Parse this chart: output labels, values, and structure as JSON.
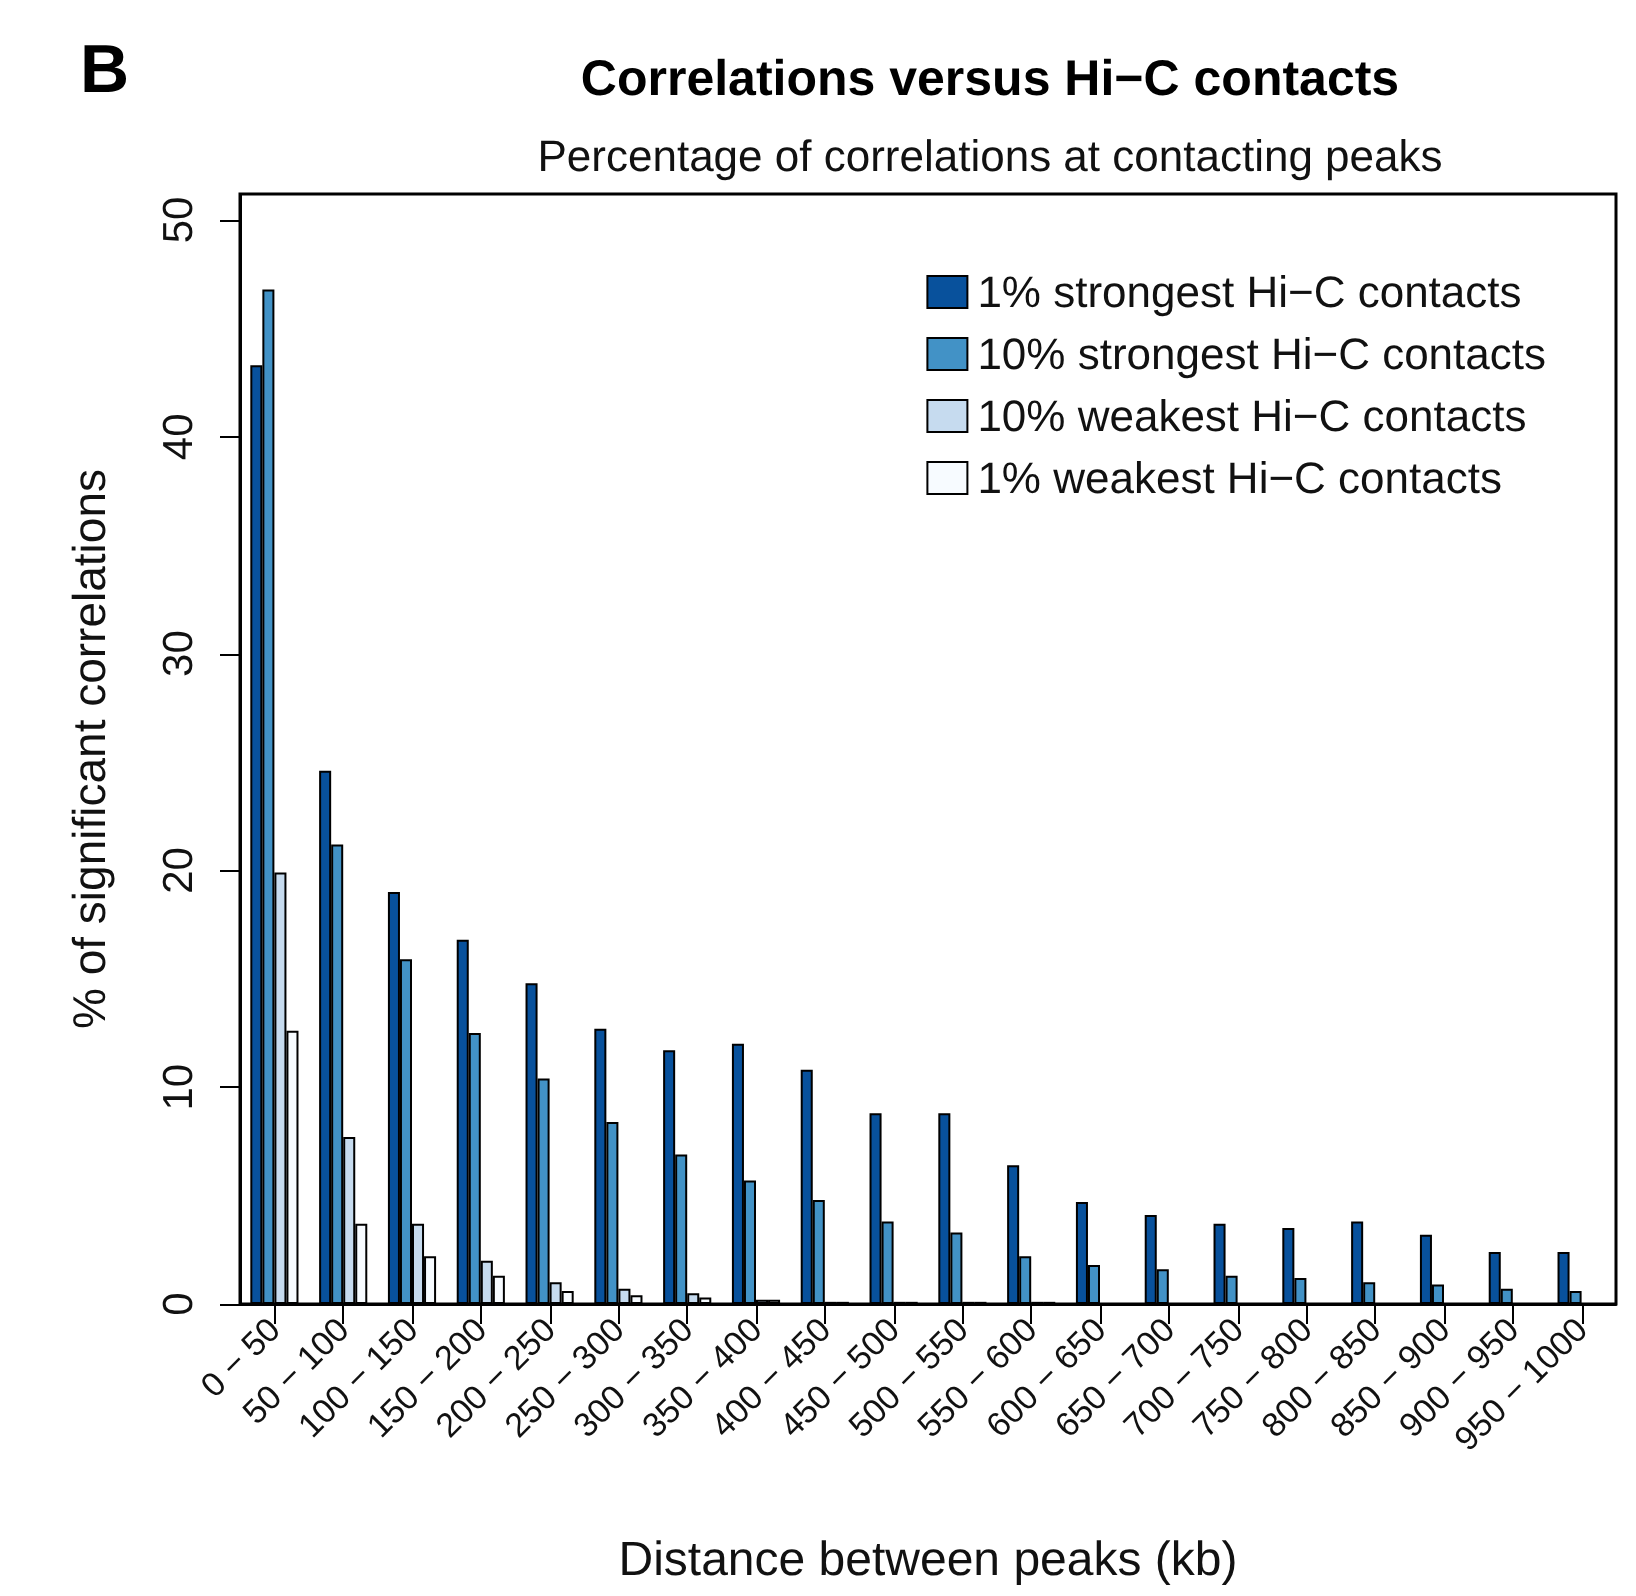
{
  "chart_data": {
    "type": "bar",
    "title": "Correlations versus Hi−C contacts",
    "subtitle": "Percentage of correlations at contacting peaks",
    "xlabel": "Distance between peaks (kb)",
    "ylabel": "% of significant correlations",
    "annotations": [
      "B"
    ],
    "categories": [
      "0 − 50",
      "50 − 100",
      "100 − 150",
      "150 − 200",
      "200 − 250",
      "250 − 300",
      "300 − 350",
      "350 − 400",
      "400 − 450",
      "450 − 500",
      "500 − 550",
      "550 − 600",
      "600 − 650",
      "650 − 700",
      "700 − 750",
      "750 − 800",
      "800 − 850",
      "850 − 900",
      "900 − 950",
      "950 − 1000"
    ],
    "series": [
      {
        "name": "1% strongest Hi−C contacts",
        "color": "#08519c",
        "values": [
          43.3,
          24.6,
          19.0,
          16.8,
          14.8,
          12.7,
          11.7,
          12.0,
          10.8,
          8.8,
          8.8,
          6.4,
          4.7,
          4.1,
          3.7,
          3.5,
          3.8,
          3.2,
          2.4,
          2.4
        ]
      },
      {
        "name": "10% strongest Hi−C contacts",
        "color": "#4292c6",
        "values": [
          46.8,
          21.2,
          15.9,
          12.5,
          10.4,
          8.4,
          6.9,
          5.7,
          4.8,
          3.8,
          3.3,
          2.2,
          1.8,
          1.6,
          1.3,
          1.2,
          1.0,
          0.9,
          0.7,
          0.6
        ]
      },
      {
        "name": "10% weakest Hi−C contacts",
        "color": "#c6dbef",
        "values": [
          19.9,
          7.7,
          3.7,
          2.0,
          1.0,
          0.7,
          0.5,
          0.2,
          0.1,
          0.1,
          0.1,
          0.1,
          null,
          null,
          null,
          null,
          null,
          null,
          null,
          null
        ]
      },
      {
        "name": "1% weakest Hi−C contacts",
        "color": "#f7fbff",
        "values": [
          12.6,
          3.7,
          2.2,
          1.3,
          0.6,
          0.4,
          0.3,
          0.2,
          0.1,
          0.1,
          0.1,
          0.1,
          null,
          null,
          null,
          null,
          null,
          null,
          null,
          null
        ]
      }
    ],
    "ylim": [
      0,
      51.2
    ],
    "yticks": [
      0,
      10,
      20,
      30,
      40,
      50
    ],
    "grid": false,
    "legend": "top right"
  }
}
